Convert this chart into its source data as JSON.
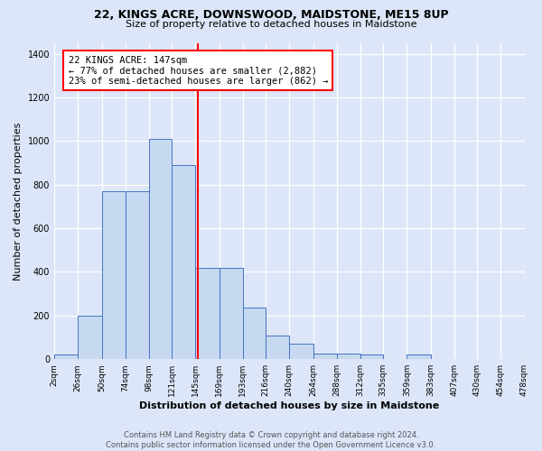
{
  "title": "22, KINGS ACRE, DOWNSWOOD, MAIDSTONE, ME15 8UP",
  "subtitle": "Size of property relative to detached houses in Maidstone",
  "xlabel": "Distribution of detached houses by size in Maidstone",
  "ylabel": "Number of detached properties",
  "footer_line1": "Contains HM Land Registry data © Crown copyright and database right 2024.",
  "footer_line2": "Contains public sector information licensed under the Open Government Licence v3.0.",
  "bin_labels": [
    "2sqm",
    "26sqm",
    "50sqm",
    "74sqm",
    "98sqm",
    "121sqm",
    "145sqm",
    "169sqm",
    "193sqm",
    "216sqm",
    "240sqm",
    "264sqm",
    "288sqm",
    "312sqm",
    "335sqm",
    "359sqm",
    "383sqm",
    "407sqm",
    "430sqm",
    "454sqm",
    "478sqm"
  ],
  "bar_heights": [
    20,
    200,
    770,
    770,
    1010,
    890,
    420,
    420,
    235,
    110,
    70,
    25,
    25,
    20,
    0,
    20,
    0,
    0,
    0,
    0
  ],
  "property_value": 147,
  "annotation_text": "22 KINGS ACRE: 147sqm\n← 77% of detached houses are smaller (2,882)\n23% of semi-detached houses are larger (862) →",
  "bar_color": "#c6d9f1",
  "bar_edge_color": "#4472c4",
  "vline_color": "red",
  "bg_color": "#dce6f8",
  "ylim": [
    0,
    1450
  ],
  "yticks": [
    0,
    200,
    400,
    600,
    800,
    1000,
    1200,
    1400
  ],
  "annotation_fontsize": 7.5,
  "title_fontsize": 9,
  "subtitle_fontsize": 8,
  "ylabel_fontsize": 8,
  "xlabel_fontsize": 8
}
